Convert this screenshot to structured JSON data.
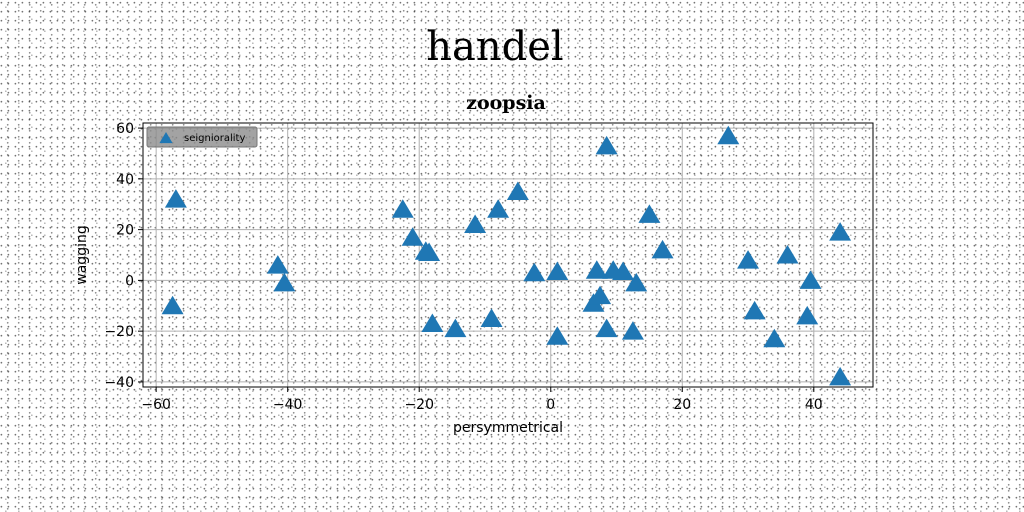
{
  "chart_data": {
    "type": "scatter",
    "suptitle": "handel",
    "title": "zoopsia",
    "xlabel": "persymmetrical",
    "ylabel": "wagging",
    "xlim": [
      -62,
      49
    ],
    "ylim": [
      -42,
      62
    ],
    "xticks": [
      -60,
      -40,
      -20,
      0,
      20,
      40
    ],
    "yticks": [
      -40,
      -20,
      0,
      20,
      40,
      60
    ],
    "grid": true,
    "legend_position": "upper-left",
    "marker": "triangle-up",
    "colors": {
      "series": "#1f77b4",
      "legend_bg": "#8c8c8c",
      "grid": "#b0b0b0"
    },
    "series": [
      {
        "name": "seigniorality",
        "points": [
          [
            -57,
            32
          ],
          [
            -57.5,
            -10
          ],
          [
            -41.5,
            6
          ],
          [
            -40.5,
            -1
          ],
          [
            -22.5,
            28
          ],
          [
            -21,
            17
          ],
          [
            -19,
            11.5
          ],
          [
            -18.5,
            11
          ],
          [
            -18,
            -17
          ],
          [
            -14.5,
            -19
          ],
          [
            -11.5,
            22
          ],
          [
            -9,
            -15
          ],
          [
            -8,
            28
          ],
          [
            -5,
            35
          ],
          [
            -2.5,
            3
          ],
          [
            1,
            3.5
          ],
          [
            1,
            -22
          ],
          [
            6.5,
            -9
          ],
          [
            7,
            4
          ],
          [
            7.5,
            -6
          ],
          [
            8.5,
            -19
          ],
          [
            8.5,
            53
          ],
          [
            9.5,
            4
          ],
          [
            11,
            3.5
          ],
          [
            13,
            -1
          ],
          [
            12.5,
            -20
          ],
          [
            15,
            26
          ],
          [
            17,
            12
          ],
          [
            27,
            57
          ],
          [
            30,
            8
          ],
          [
            31,
            -12
          ],
          [
            34,
            -23
          ],
          [
            36,
            10
          ],
          [
            39,
            -14
          ],
          [
            39.5,
            0
          ],
          [
            44,
            19
          ],
          [
            44,
            -38
          ]
        ]
      }
    ]
  }
}
